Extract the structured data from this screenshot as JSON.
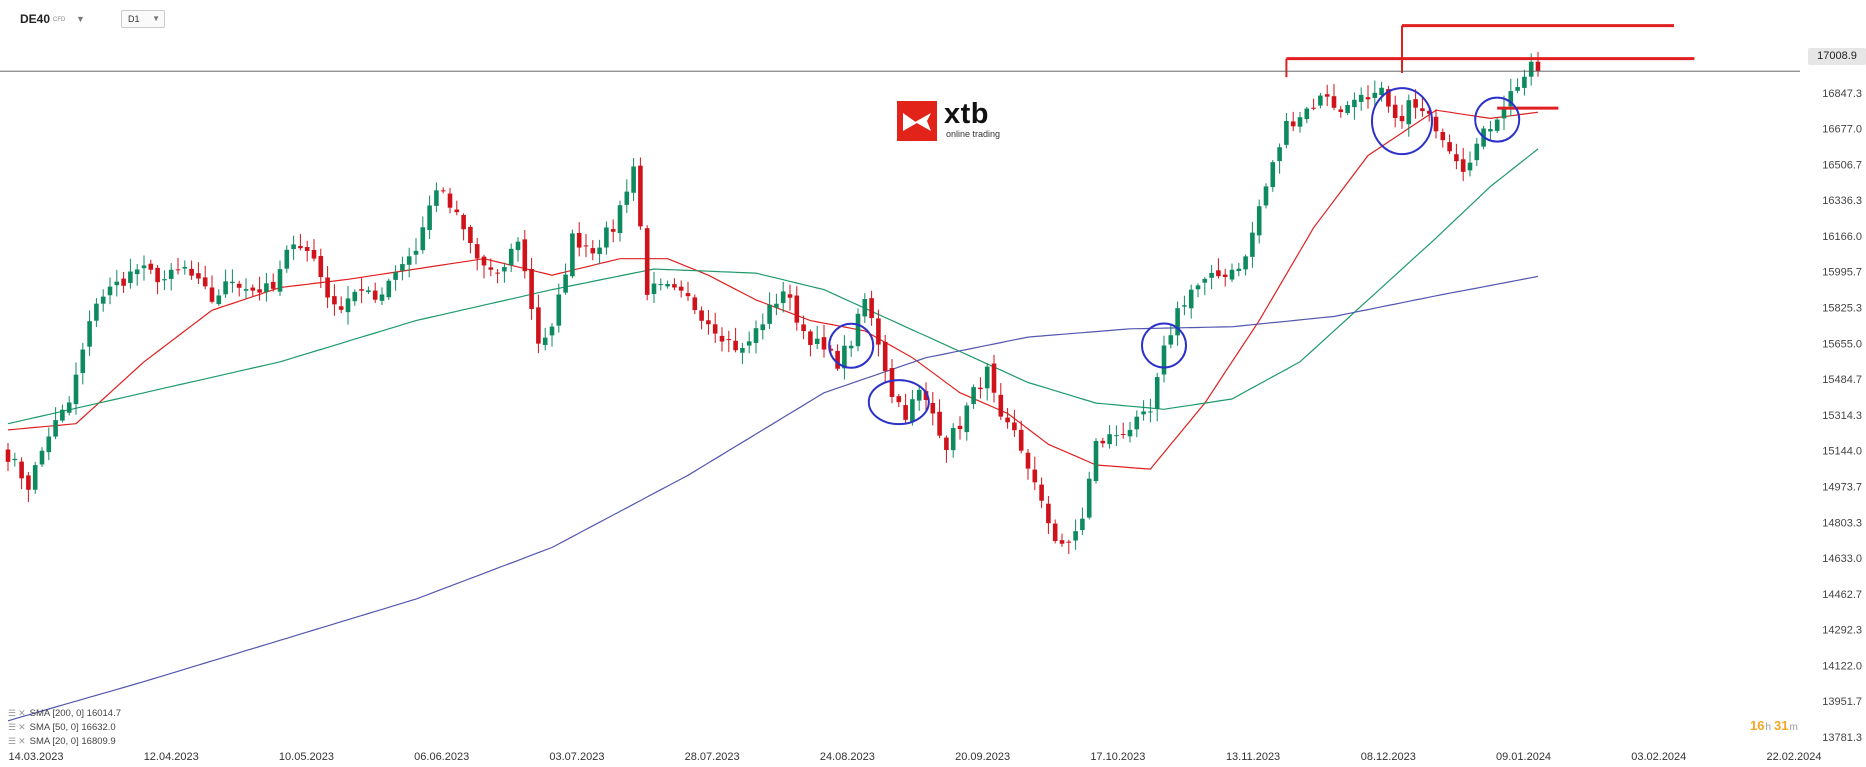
{
  "toolbar": {
    "symbol": "DE40",
    "symbol_type": "CFD",
    "timeframe": "D1"
  },
  "logo": {
    "name": "xtb",
    "tagline": "online trading"
  },
  "last_price": "17008.9",
  "countdown": {
    "hours": "16",
    "h_unit": "h",
    "minutes": "31",
    "m_unit": "m"
  },
  "legend": [
    {
      "text": "SMA [200, 0] 16014.7"
    },
    {
      "text": "SMA [50, 0] 16632.0"
    },
    {
      "text": "SMA [20, 0] 16809.9"
    }
  ],
  "colors": {
    "bull": "#0e8a5f",
    "bear": "#d0121b",
    "sma20": "#e02020",
    "sma50": "#1e9a6a",
    "sma200": "#5457b0",
    "annotation_line": "#e02020",
    "annotation_circle": "#2c31c9"
  },
  "icons": {
    "legend_settings": "bars-icon",
    "legend_remove": "close-icon",
    "dropdown": "chevron-down-icon"
  },
  "chart_data": {
    "type": "candlestick",
    "title": "",
    "xlabel": "",
    "ylabel": "",
    "ylim": [
      13781.3,
      17250
    ],
    "y_ticks": [
      "17008.9",
      "16847.3",
      "16677.0",
      "16506.7",
      "16336.3",
      "16166.0",
      "15995.7",
      "15825.3",
      "15655.0",
      "15484.7",
      "15314.3",
      "15144.0",
      "14973.7",
      "14803.3",
      "14633.0",
      "14462.7",
      "14292.3",
      "14122.0",
      "13951.7",
      "13781.3"
    ],
    "x_ticks": [
      "14.03.2023",
      "12.04.2023",
      "10.05.2023",
      "06.06.2023",
      "03.07.2023",
      "28.07.2023",
      "24.08.2023",
      "20.09.2023",
      "17.10.2023",
      "13.11.2023",
      "08.12.2023",
      "09.01.2024",
      "03.02.2024",
      "22.02.2024"
    ],
    "close_anchors": [
      [
        0,
        15150
      ],
      [
        3,
        15000
      ],
      [
        6,
        15250
      ],
      [
        9,
        15400
      ],
      [
        13,
        15900
      ],
      [
        17,
        16000
      ],
      [
        19,
        16050
      ],
      [
        23,
        16000
      ],
      [
        26,
        16050
      ],
      [
        30,
        15900
      ],
      [
        33,
        16000
      ],
      [
        36,
        15950
      ],
      [
        39,
        15950
      ],
      [
        42,
        16200
      ],
      [
        45,
        16100
      ],
      [
        48,
        15850
      ],
      [
        51,
        15950
      ],
      [
        54,
        15900
      ],
      [
        57,
        16050
      ],
      [
        60,
        16150
      ],
      [
        63,
        16450
      ],
      [
        66,
        16300
      ],
      [
        69,
        16100
      ],
      [
        72,
        16000
      ],
      [
        75,
        16200
      ],
      [
        78,
        15700
      ],
      [
        80,
        15750
      ],
      [
        83,
        16200
      ],
      [
        86,
        16150
      ],
      [
        89,
        16250
      ],
      [
        92,
        16550
      ],
      [
        94,
        15950
      ],
      [
        97,
        15950
      ],
      [
        100,
        15900
      ],
      [
        103,
        15800
      ],
      [
        106,
        15700
      ],
      [
        108,
        15650
      ],
      [
        111,
        15800
      ],
      [
        114,
        15950
      ],
      [
        117,
        15750
      ],
      [
        120,
        15650
      ],
      [
        122,
        15600
      ],
      [
        124,
        15700
      ],
      [
        126,
        15900
      ],
      [
        128,
        15700
      ],
      [
        130,
        15450
      ],
      [
        132,
        15350
      ],
      [
        134,
        15450
      ],
      [
        136,
        15350
      ],
      [
        138,
        15200
      ],
      [
        140,
        15300
      ],
      [
        142,
        15450
      ],
      [
        144,
        15550
      ],
      [
        146,
        15300
      ],
      [
        148,
        15250
      ],
      [
        150,
        15100
      ],
      [
        152,
        14900
      ],
      [
        154,
        14750
      ],
      [
        156,
        14700
      ],
      [
        158,
        14850
      ],
      [
        160,
        15200
      ],
      [
        163,
        15250
      ],
      [
        166,
        15300
      ],
      [
        168,
        15350
      ],
      [
        170,
        15650
      ],
      [
        172,
        15850
      ],
      [
        174,
        15950
      ],
      [
        177,
        16000
      ],
      [
        180,
        16050
      ],
      [
        182,
        16100
      ],
      [
        184,
        16350
      ],
      [
        186,
        16550
      ],
      [
        188,
        16750
      ],
      [
        190,
        16800
      ],
      [
        192,
        16850
      ],
      [
        194,
        16900
      ],
      [
        196,
        16800
      ],
      [
        198,
        16900
      ],
      [
        200,
        16850
      ],
      [
        202,
        16900
      ],
      [
        204,
        16750
      ],
      [
        206,
        16850
      ],
      [
        208,
        16800
      ],
      [
        210,
        16750
      ],
      [
        212,
        16650
      ],
      [
        214,
        16550
      ],
      [
        216,
        16650
      ],
      [
        218,
        16750
      ],
      [
        220,
        16850
      ],
      [
        222,
        16950
      ],
      [
        224,
        17020
      ],
      [
        225,
        17009
      ]
    ],
    "sma_anchors": {
      "SMA 20": [
        [
          0,
          15270
        ],
        [
          10,
          15300
        ],
        [
          20,
          15600
        ],
        [
          30,
          15850
        ],
        [
          40,
          15960
        ],
        [
          50,
          16000
        ],
        [
          60,
          16050
        ],
        [
          70,
          16100
        ],
        [
          80,
          16020
        ],
        [
          90,
          16100
        ],
        [
          97,
          16100
        ],
        [
          103,
          16020
        ],
        [
          110,
          15900
        ],
        [
          118,
          15800
        ],
        [
          126,
          15750
        ],
        [
          133,
          15620
        ],
        [
          140,
          15450
        ],
        [
          147,
          15350
        ],
        [
          153,
          15200
        ],
        [
          160,
          15100
        ],
        [
          168,
          15080
        ],
        [
          176,
          15400
        ],
        [
          184,
          15800
        ],
        [
          192,
          16250
        ],
        [
          200,
          16600
        ],
        [
          210,
          16820
        ],
        [
          218,
          16780
        ],
        [
          225,
          16810
        ]
      ],
      "SMA 50": [
        [
          0,
          15300
        ],
        [
          20,
          15450
        ],
        [
          40,
          15600
        ],
        [
          60,
          15800
        ],
        [
          80,
          15950
        ],
        [
          95,
          16050
        ],
        [
          110,
          16030
        ],
        [
          120,
          15950
        ],
        [
          130,
          15800
        ],
        [
          140,
          15650
        ],
        [
          150,
          15500
        ],
        [
          160,
          15400
        ],
        [
          170,
          15370
        ],
        [
          180,
          15420
        ],
        [
          190,
          15600
        ],
        [
          200,
          15900
        ],
        [
          210,
          16200
        ],
        [
          218,
          16450
        ],
        [
          225,
          16632
        ]
      ],
      "SMA 200": [
        [
          0,
          13860
        ],
        [
          20,
          14050
        ],
        [
          40,
          14250
        ],
        [
          60,
          14450
        ],
        [
          80,
          14700
        ],
        [
          100,
          15050
        ],
        [
          120,
          15450
        ],
        [
          135,
          15620
        ],
        [
          150,
          15720
        ],
        [
          165,
          15760
        ],
        [
          180,
          15770
        ],
        [
          195,
          15820
        ],
        [
          210,
          15920
        ],
        [
          225,
          16014
        ]
      ]
    },
    "annotations": {
      "resistance_lines": [
        {
          "price": 17230,
          "from_bar": 205,
          "to_bar": 245
        },
        {
          "price": 17070,
          "from_bar": 188,
          "to_bar": 248
        },
        {
          "price": 16830,
          "from_bar": 219,
          "to_bar": 228
        }
      ],
      "circles_at_bars": [
        124,
        131,
        170,
        205,
        219
      ]
    },
    "grid": false,
    "legend_position": "bottom-left"
  }
}
